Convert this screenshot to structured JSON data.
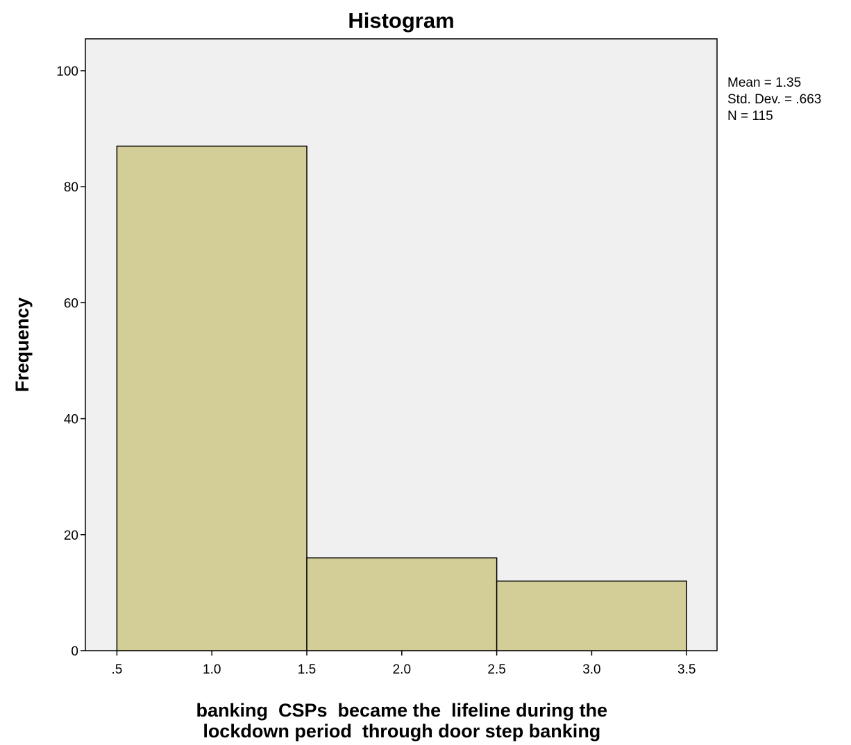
{
  "chart_data": {
    "type": "bar",
    "title": "Histogram",
    "xlabel": "banking  CSPs  became the  lifeline during the lockdown period  through door step banking",
    "xlabel_lines": [
      "banking  CSPs  became the  lifeline during the",
      "lockdown period  through door step banking"
    ],
    "ylabel": "Frequency",
    "xlim": [
      0.334,
      3.66
    ],
    "ylim": [
      0,
      105.5
    ],
    "x_ticks": [
      0.5,
      1.0,
      1.5,
      2.0,
      2.5,
      3.0,
      3.5
    ],
    "x_tick_labels": [
      ".5",
      "1.0",
      "1.5",
      "2.0",
      "2.5",
      "3.0",
      "3.5"
    ],
    "y_ticks": [
      0,
      20,
      40,
      60,
      80,
      100
    ],
    "y_tick_labels": [
      "0",
      "20",
      "40",
      "60",
      "80",
      "100"
    ],
    "bins": [
      {
        "start": 0.5,
        "end": 1.5,
        "count": 87
      },
      {
        "start": 1.5,
        "end": 2.5,
        "count": 16
      },
      {
        "start": 2.5,
        "end": 3.5,
        "count": 12
      }
    ],
    "grid": false,
    "colors": {
      "plot_background": "#f0f0f0",
      "bar_fill": "#d3ce97",
      "bar_stroke": "#000000",
      "axis": "#000000"
    },
    "stats": {
      "mean": "Mean = 1.35",
      "std_dev": "Std. Dev. = .663",
      "n": "N = 115"
    }
  }
}
